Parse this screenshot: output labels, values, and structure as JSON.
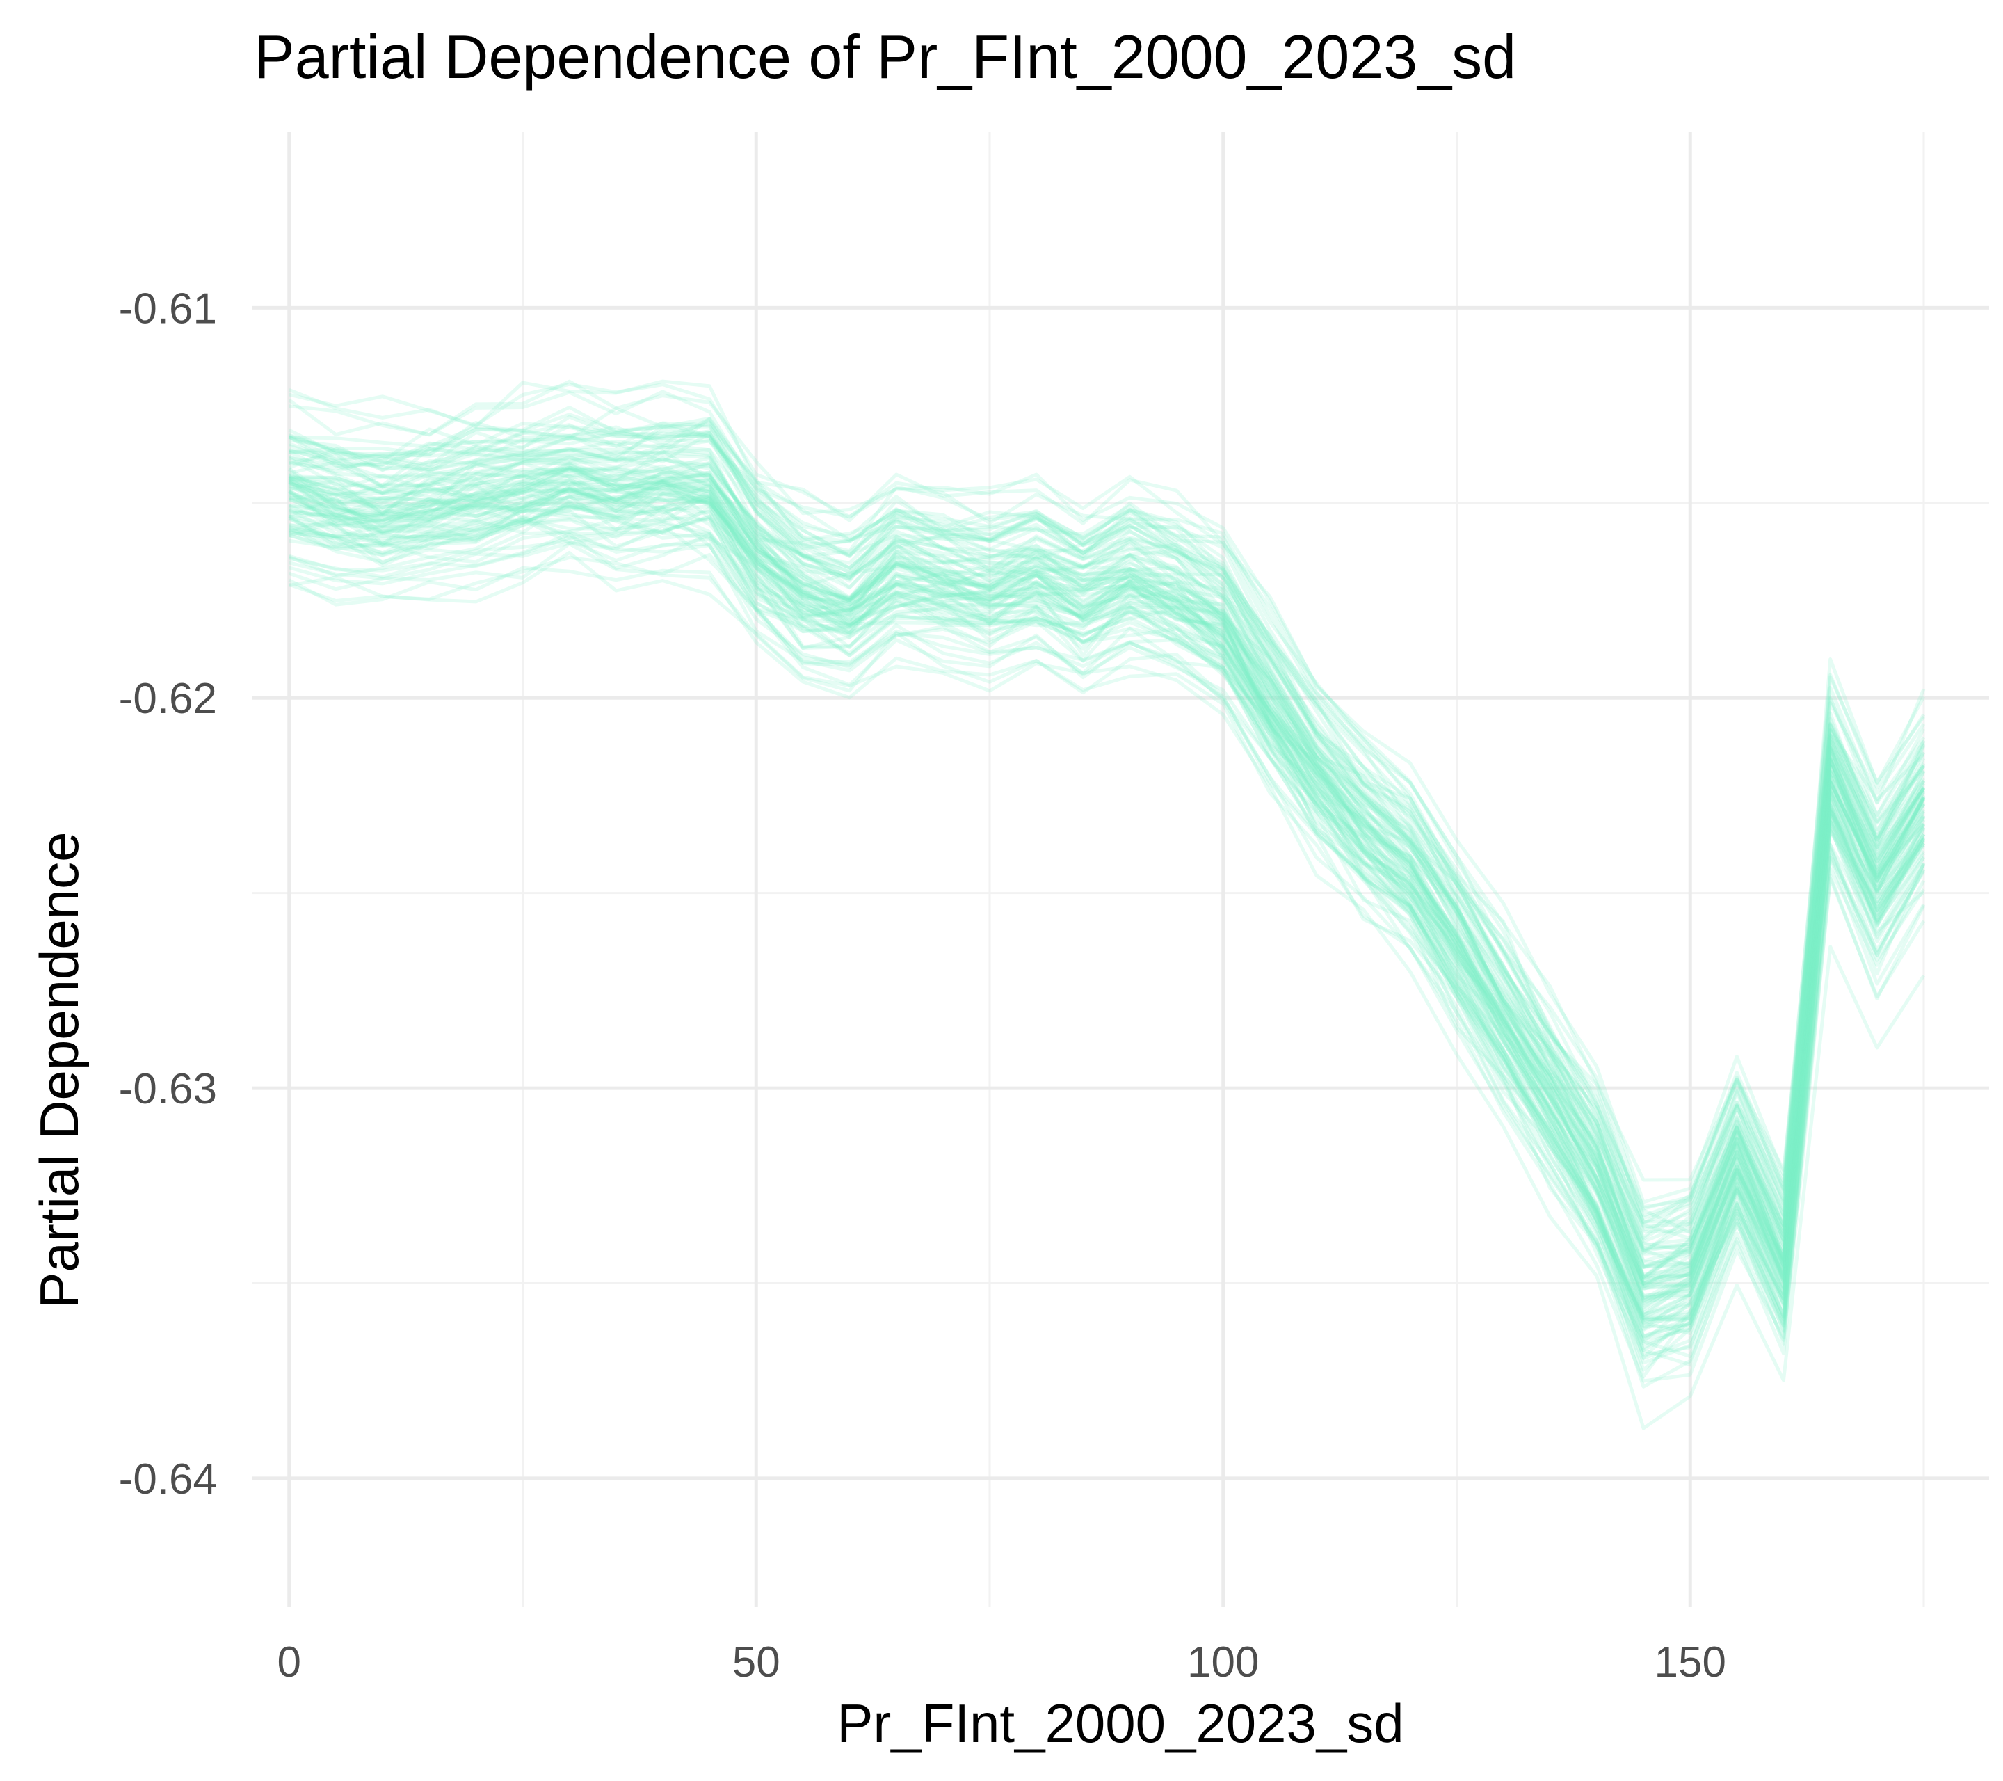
{
  "chart_data": {
    "type": "line",
    "title": "Partial Dependence of Pr_FInt_2000_2023_sd",
    "xlabel": "Pr_FInt_2000_2023_sd",
    "ylabel": "Partial Dependence",
    "xlim": [
      -4,
      182
    ],
    "ylim": [
      -0.6433,
      -0.6055
    ],
    "x_ticks": [
      0,
      50,
      100,
      150
    ],
    "x_tick_labels": [
      "0",
      "50",
      "100",
      "150"
    ],
    "y_ticks": [
      -0.64,
      -0.63,
      -0.62,
      -0.61
    ],
    "y_tick_labels": [
      "-0.64",
      "-0.63",
      "-0.62",
      "-0.61"
    ],
    "grid": true,
    "legend": "none",
    "line_color": "#7ff2c8",
    "line_opacity": 0.2,
    "n_curves": 100,
    "x": [
      0,
      5,
      10,
      15,
      20,
      25,
      30,
      35,
      40,
      45,
      50,
      55,
      60,
      65,
      70,
      75,
      80,
      85,
      90,
      95,
      100,
      105,
      110,
      115,
      120,
      125,
      130,
      135,
      140,
      145,
      150,
      155,
      160,
      165,
      170,
      175
    ],
    "center_curve": [
      -0.6147,
      -0.615,
      -0.6152,
      -0.615,
      -0.6148,
      -0.6146,
      -0.6144,
      -0.6146,
      -0.6145,
      -0.6145,
      -0.6162,
      -0.6172,
      -0.6176,
      -0.6166,
      -0.6169,
      -0.6172,
      -0.6168,
      -0.6174,
      -0.6168,
      -0.6172,
      -0.618,
      -0.62,
      -0.6218,
      -0.6232,
      -0.6243,
      -0.6262,
      -0.6282,
      -0.6302,
      -0.6322,
      -0.6352,
      -0.6348,
      -0.6318,
      -0.6345,
      -0.622,
      -0.6248,
      -0.6228
    ]
  }
}
